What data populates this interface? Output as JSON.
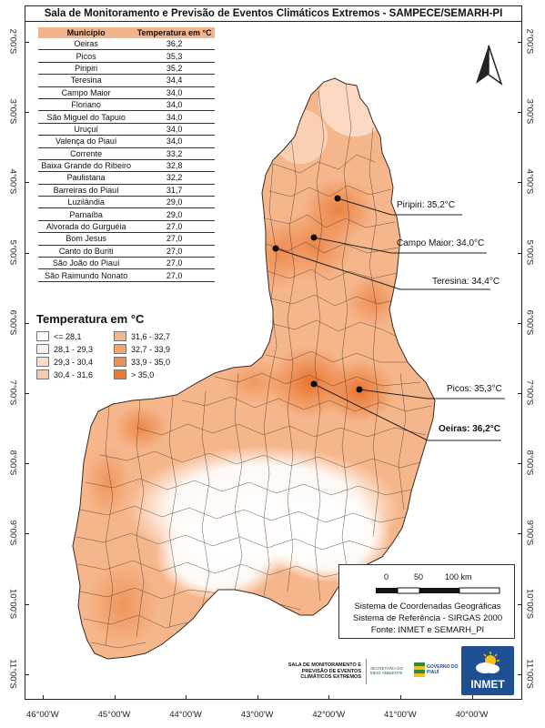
{
  "title": "Sala de Monitoramento e Previsão de Eventos Climáticos Extremos - SAMPECE/SEMARH-PI",
  "table": {
    "headers": [
      "Município",
      "Temperatura em °C"
    ],
    "rows": [
      [
        "Oeiras",
        "36,2"
      ],
      [
        "Picos",
        "35,3"
      ],
      [
        "Piripiri",
        "35,2"
      ],
      [
        "Teresina",
        "34,4"
      ],
      [
        "Campo Maior",
        "34,0"
      ],
      [
        "Floriano",
        "34,0"
      ],
      [
        "São Miguel do Tapuio",
        "34,0"
      ],
      [
        "Uruçuí",
        "34,0"
      ],
      [
        "Valença do Piauí",
        "34,0"
      ],
      [
        "Corrente",
        "33,2"
      ],
      [
        "Baixa Grande do Ribeiro",
        "32,8"
      ],
      [
        "Paulistana",
        "32,2"
      ],
      [
        "Barreiras do Piauí",
        "31,7"
      ],
      [
        "Luzilândia",
        "29,0"
      ],
      [
        "Parnaíba",
        "29,0"
      ],
      [
        "Alvorada do Gurguéia",
        "27,0"
      ],
      [
        "Bom Jesus",
        "27,0"
      ],
      [
        "Canto do Buriti",
        "27,0"
      ],
      [
        "São João do Piauí",
        "27,0"
      ],
      [
        "São Raimundo Nonato",
        "27,0"
      ]
    ]
  },
  "legend": {
    "title": "Temperatura em °C",
    "classes": [
      {
        "label": "<= 28,1",
        "color": "#ffffff"
      },
      {
        "label": "28,1 - 29,3",
        "color": "#fdeee3"
      },
      {
        "label": "29,3 - 30,4",
        "color": "#fbdcc6"
      },
      {
        "label": "30,4 - 31,6",
        "color": "#f9c9a8"
      },
      {
        "label": "31,6 - 32,7",
        "color": "#f6b68b"
      },
      {
        "label": "32,7 - 33,9",
        "color": "#f3a36f"
      },
      {
        "label": "33,9 - 35,0",
        "color": "#ef8f52"
      },
      {
        "label": "> 35,0",
        "color": "#ea7a35"
      }
    ]
  },
  "callouts": [
    {
      "label": "Piripiri: 35,2°C",
      "bold": false
    },
    {
      "label": "Campo Maior: 34,0°C",
      "bold": false
    },
    {
      "label": "Teresina: 34,4°C",
      "bold": false
    },
    {
      "label": "Picos: 35,3°C",
      "bold": false
    },
    {
      "label": "Oeiras: 36,2°C",
      "bold": true
    }
  ],
  "latitudes": [
    "2°00'S",
    "3°00'S",
    "4°00'S",
    "5°00'S",
    "6°00'S",
    "7°00'S",
    "8°00'S",
    "9°00'S",
    "10°00'S",
    "11°00'S"
  ],
  "longitudes": [
    "46°00'W",
    "45°00'W",
    "44°00'W",
    "43°00'W",
    "42°00'W",
    "41°00'W",
    "40°00'W"
  ],
  "scale": {
    "labels": [
      "0",
      "50",
      "100 km"
    ]
  },
  "info": {
    "line1": "Sistema de Coordenadas Geográficas",
    "line2": "Sistema de Referência - SIRGAS 2000",
    "line3": "Fonte: INMET e SEMARH_PI"
  },
  "logos": {
    "sampece": "SALA DE MONITORAMENTO E PREVISÃO DE EVENTOS CLIMÁTICOS EXTREMOS",
    "semarh": "SECRETARIA DO MEIO AMBIENTE",
    "piaui": "GOVERNO DO PIAUÍ",
    "inmet": "INMET"
  },
  "colors": {
    "frame": "#222222",
    "header": "#f2b48a",
    "inmet": "#1d4f91"
  }
}
